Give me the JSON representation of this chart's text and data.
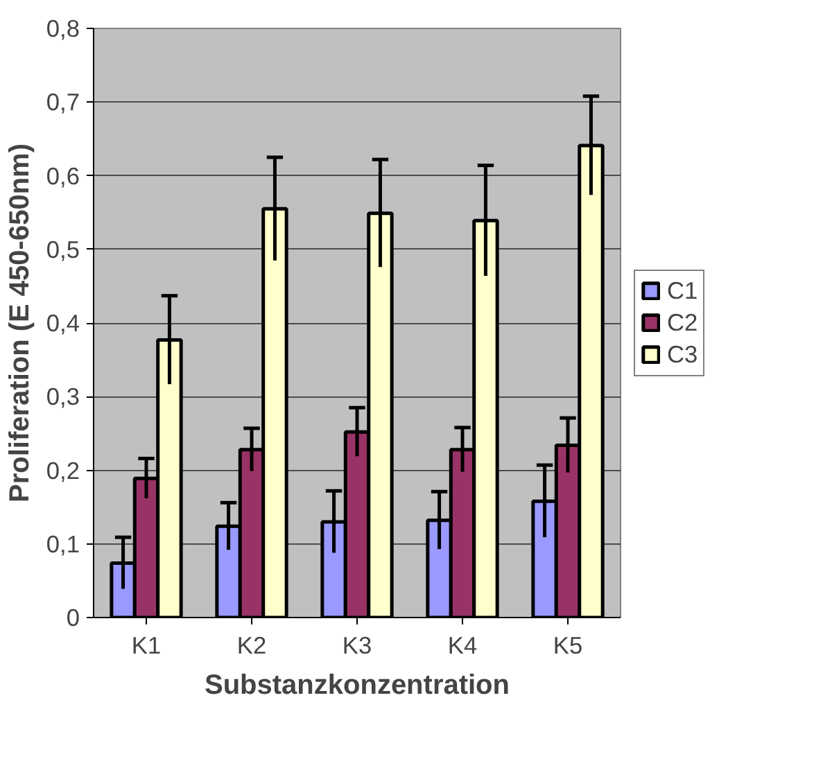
{
  "chart_data": {
    "type": "bar",
    "xlabel": "Substanzkonzentration",
    "ylabel": "Proliferation (E 450-650nm)",
    "categories": [
      "K1",
      "K2",
      "K3",
      "K4",
      "K5"
    ],
    "series": [
      {
        "name": "C1",
        "color": "#9999ff",
        "values": [
          0.074,
          0.124,
          0.13,
          0.132,
          0.158
        ],
        "errors": [
          0.035,
          0.032,
          0.042,
          0.039,
          0.049
        ]
      },
      {
        "name": "C2",
        "color": "#993366",
        "values": [
          0.189,
          0.228,
          0.252,
          0.228,
          0.234
        ],
        "errors": [
          0.027,
          0.029,
          0.033,
          0.03,
          0.037
        ]
      },
      {
        "name": "C3",
        "color": "#ffffcc",
        "values": [
          0.377,
          0.555,
          0.549,
          0.539,
          0.641
        ],
        "errors": [
          0.06,
          0.07,
          0.073,
          0.075,
          0.067
        ]
      }
    ],
    "ylim": [
      0,
      0.8
    ],
    "yticks": [
      {
        "value": 0,
        "label": "0"
      },
      {
        "value": 0.1,
        "label": "0,1"
      },
      {
        "value": 0.2,
        "label": "0,2"
      },
      {
        "value": 0.3,
        "label": "0,3"
      },
      {
        "value": 0.4,
        "label": "0,4"
      },
      {
        "value": 0.5,
        "label": "0,5"
      },
      {
        "value": 0.6,
        "label": "0,6"
      },
      {
        "value": 0.7,
        "label": "0,7"
      },
      {
        "value": 0.8,
        "label": "0,8"
      }
    ],
    "grid": "y",
    "legend": "right"
  }
}
